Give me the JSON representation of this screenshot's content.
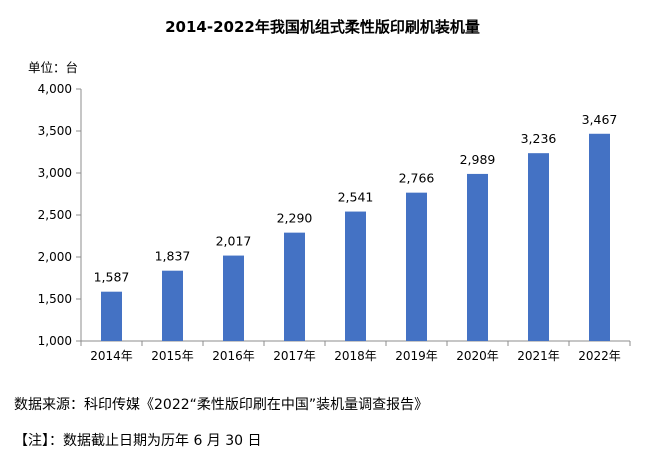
{
  "chart_data": {
    "type": "bar",
    "title": "2014-2022年我国机组式柔性版印刷机装机量",
    "y_unit": "单位：台",
    "categories": [
      "2014年",
      "2015年",
      "2016年",
      "2017年",
      "2018年",
      "2019年",
      "2020年",
      "2021年",
      "2022年"
    ],
    "values": [
      1587,
      1837,
      2017,
      2290,
      2541,
      2766,
      2989,
      3236,
      3467
    ],
    "data_labels": [
      "1,587",
      "1,837",
      "2,017",
      "2,290",
      "2,541",
      "2,766",
      "2,989",
      "3,236",
      "3,467"
    ],
    "ylim": [
      1000,
      4000
    ],
    "yticks": [
      1000,
      1500,
      2000,
      2500,
      3000,
      3500,
      4000
    ],
    "ytick_labels": [
      "1,000",
      "1,500",
      "2,000",
      "2,500",
      "3,000",
      "3,500",
      "4,000"
    ],
    "grid": false,
    "bar_color": "#4472C4"
  },
  "source_note": "数据来源：科印传媒《2022“柔性版印刷在中国”装机量调查报告》",
  "footnote": "【注】：数据截止日期为历年 6 月 30 日"
}
